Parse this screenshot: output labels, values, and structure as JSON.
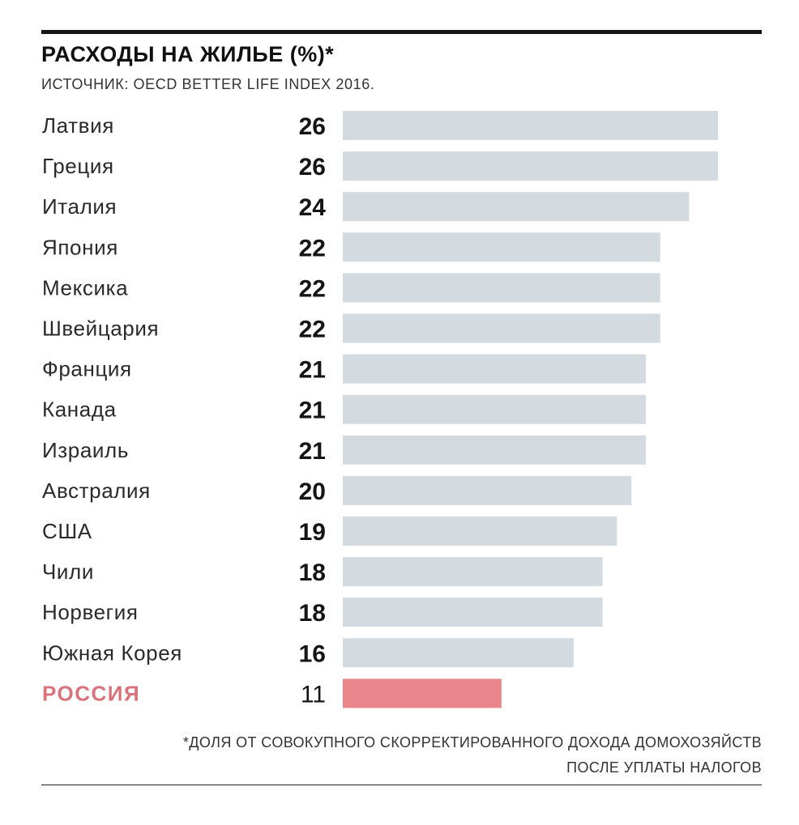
{
  "chart_data": {
    "type": "bar",
    "orientation": "horizontal",
    "title": "РАСХОДЫ НА ЖИЛЬЕ (%)*",
    "subtitle": "ИСТОЧНИК: OECD BETTER LIFE INDEX 2016.",
    "categories": [
      "Латвия",
      "Греция",
      "Италия",
      "Япония",
      "Мексика",
      "Швейцария",
      "Франция",
      "Канада",
      "Израиль",
      "Австралия",
      "США",
      "Чили",
      "Норвегия",
      "Южная Корея",
      "РОССИЯ"
    ],
    "values": [
      26,
      26,
      24,
      22,
      22,
      22,
      21,
      21,
      21,
      20,
      19,
      18,
      18,
      16,
      11
    ],
    "highlight_category": "РОССИЯ",
    "colors": {
      "bar": "#d3dae0",
      "highlight_bar": "#e8868b",
      "highlight_text": "#d9727a"
    },
    "xlim": [
      0,
      26
    ],
    "grid": false,
    "legend": "none",
    "footnote": [
      "*ДОЛЯ ОТ СОВОКУПНОГО СКОРРЕКТИРОВАННОГО ДОХОДА ДОМОХОЗЯЙСТВ",
      "ПОСЛЕ УПЛАТЫ НАЛОГОВ"
    ]
  }
}
